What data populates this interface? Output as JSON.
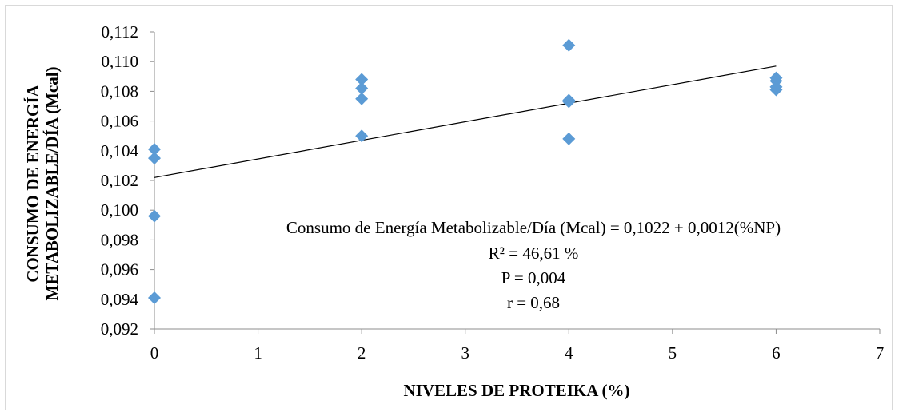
{
  "chart_data": {
    "type": "scatter",
    "title": "",
    "xlabel": "NIVELES DE PROTEIKA (%)",
    "ylabel_lines": [
      "CONSUMO DE ENERGÍA",
      "METABOLIZABLE/DÍA  (Mcal)"
    ],
    "xlim": [
      0,
      7
    ],
    "ylim": [
      0.092,
      0.112
    ],
    "x_ticks": [
      0,
      1,
      2,
      3,
      4,
      5,
      6,
      7
    ],
    "x_tick_labels": [
      "0",
      "1",
      "2",
      "3",
      "4",
      "5",
      "6",
      "7"
    ],
    "y_ticks": [
      0.092,
      0.094,
      0.096,
      0.098,
      0.1,
      0.102,
      0.104,
      0.106,
      0.108,
      0.11,
      0.112
    ],
    "y_tick_labels": [
      "0,092",
      "0,094",
      "0,096",
      "0,098",
      "0,100",
      "0,102",
      "0,104",
      "0,106",
      "0,108",
      "0,110",
      "0,112"
    ],
    "grid": false,
    "legend": "none",
    "marker_color": "#5b9bd5",
    "line_color": "#000000",
    "points": [
      {
        "x": 0,
        "y": 0.1041
      },
      {
        "x": 0,
        "y": 0.1035
      },
      {
        "x": 0,
        "y": 0.0996
      },
      {
        "x": 0,
        "y": 0.0941
      },
      {
        "x": 2,
        "y": 0.1088
      },
      {
        "x": 2,
        "y": 0.1082
      },
      {
        "x": 2,
        "y": 0.1075
      },
      {
        "x": 2,
        "y": 0.105
      },
      {
        "x": 4,
        "y": 0.1111
      },
      {
        "x": 4,
        "y": 0.1074
      },
      {
        "x": 4,
        "y": 0.1073
      },
      {
        "x": 4,
        "y": 0.1048
      },
      {
        "x": 6,
        "y": 0.1089
      },
      {
        "x": 6,
        "y": 0.1087
      },
      {
        "x": 6,
        "y": 0.1083
      },
      {
        "x": 6,
        "y": 0.1081
      }
    ],
    "trendline": {
      "x": [
        0,
        6
      ],
      "y": [
        0.1022,
        0.1097
      ]
    },
    "annotations": [
      "Consumo de Energía Metabolizable/Día (Mcal)  = 0,1022 + 0,0012(%NP)",
      "R² = 46,61 %",
      "P = 0,004",
      "r = 0,68"
    ]
  }
}
